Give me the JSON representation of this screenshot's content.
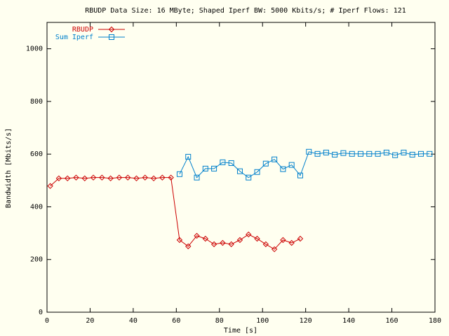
{
  "chart_data": {
    "type": "line",
    "title": "RBUDP Data Size: 16 MByte; Shaped Iperf BW: 5000 Kbits/s; # Iperf Flows: 121",
    "x_label": "Time [s]",
    "y_label": "Bandwidth [Mbits/s]",
    "xlim": [
      0,
      180
    ],
    "ylim": [
      0,
      1100
    ],
    "xticks": [
      0,
      20,
      40,
      60,
      80,
      100,
      120,
      140,
      160,
      180
    ],
    "yticks": [
      0,
      200,
      400,
      600,
      800,
      1000
    ],
    "legend": "top-left",
    "series": [
      {
        "name": "RBUDP",
        "color": "#cc0000",
        "marker": "diamond",
        "x": [
          1.5,
          5.5,
          9.5,
          13.5,
          17.5,
          21.5,
          25.5,
          29.5,
          33.5,
          37.5,
          41.5,
          45.5,
          49.5,
          53.5,
          57.5,
          61.5,
          65.5,
          69.5,
          73.5,
          77.5,
          81.5,
          85.5,
          89.5,
          93.5,
          97.5,
          101.5,
          105.5,
          109.5,
          113.5,
          117.5
        ],
        "values": [
          479,
          508,
          508,
          511,
          508,
          511,
          511,
          508,
          511,
          511,
          508,
          511,
          508,
          511,
          511,
          274,
          250,
          290,
          279,
          258,
          263,
          258,
          274,
          295,
          279,
          258,
          239,
          274,
          263,
          279
        ]
      },
      {
        "name": "Sum Iperf",
        "color": "#0080cc",
        "marker": "square",
        "x": [
          61.5,
          65.5,
          69.5,
          73.5,
          77.5,
          81.5,
          85.5,
          89.5,
          93.5,
          97.5,
          101.5,
          105.5,
          109.5,
          113.5,
          117.5,
          121.5,
          125.5,
          129.5,
          133.5,
          137.5,
          141.5,
          145.5,
          149.5,
          153.5,
          157.5,
          161.5,
          165.5,
          169.5,
          173.5,
          177.5
        ],
        "values": [
          524,
          590,
          511,
          545,
          545,
          569,
          566,
          535,
          511,
          532,
          564,
          580,
          543,
          559,
          519,
          609,
          601,
          606,
          598,
          604,
          601,
          601,
          601,
          601,
          606,
          596,
          606,
          598,
          601,
          601
        ]
      }
    ]
  }
}
